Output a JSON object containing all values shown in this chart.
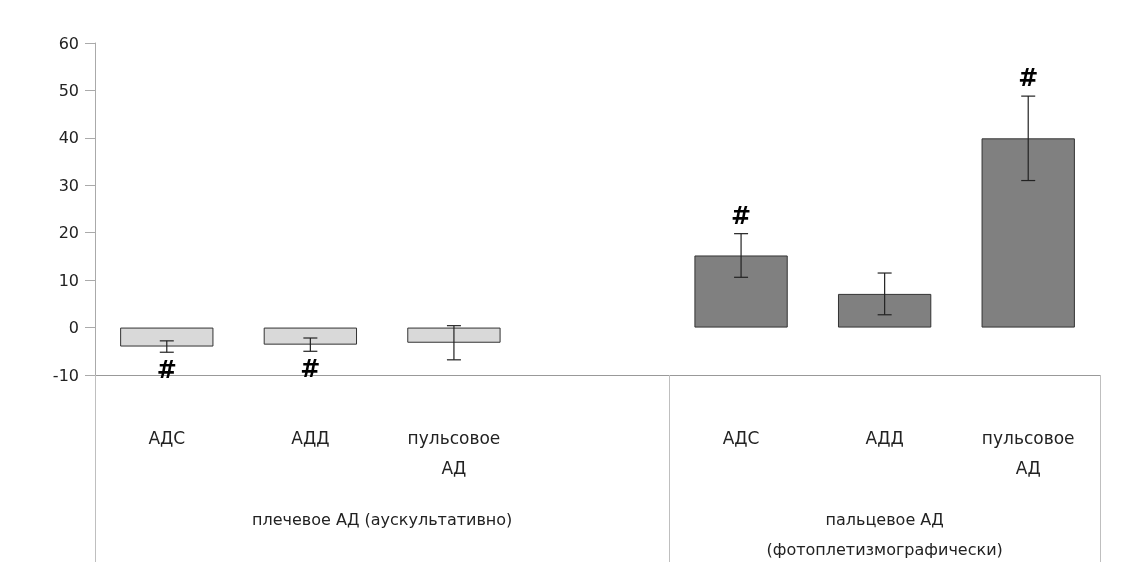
{
  "chart_data": {
    "type": "bar",
    "categories": [
      "АДС",
      "АДД",
      "пульсовое АД",
      null,
      "АДС",
      "АДД",
      "пульсовое АД"
    ],
    "values": [
      -4.0,
      -3.6,
      -3.2,
      null,
      15.2,
      7.1,
      39.9
    ],
    "errors": [
      1.2,
      1.4,
      3.6,
      null,
      4.6,
      4.4,
      8.9
    ],
    "colors": [
      "#d9d9d9",
      "#d9d9d9",
      "#d9d9d9",
      null,
      "#808080",
      "#808080",
      "#808080"
    ],
    "value_labels": [
      "#",
      "#",
      null,
      null,
      "#",
      null,
      "#"
    ],
    "ylim": [
      -10,
      60
    ],
    "yticks": [
      -10,
      0,
      10,
      20,
      30,
      40,
      50,
      60
    ],
    "grid": false,
    "annotations": [
      "плечевое АД (аускультативно)",
      "пальцевое АД (фотоплетизмографически)"
    ]
  }
}
